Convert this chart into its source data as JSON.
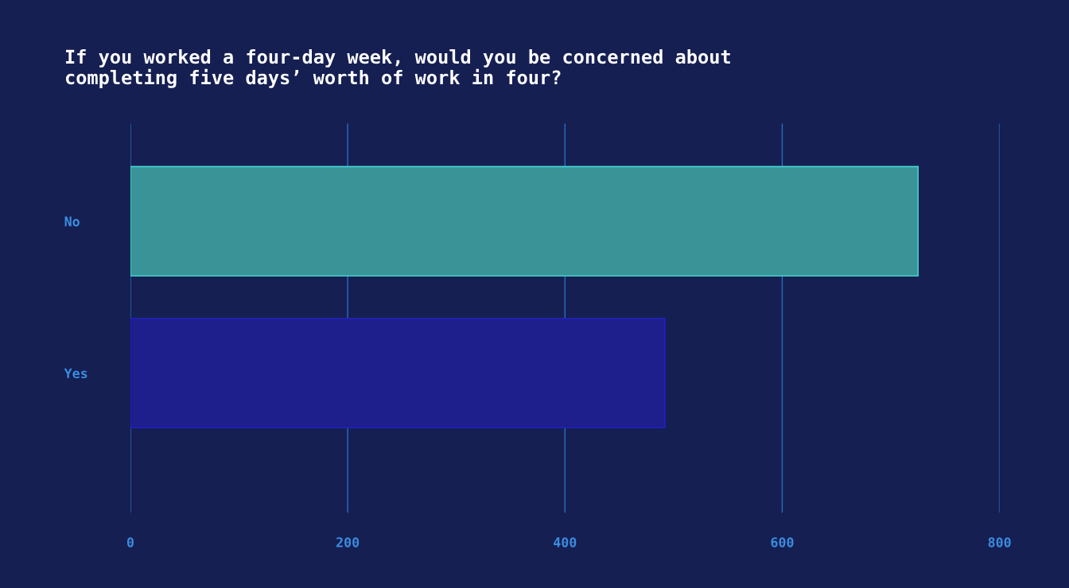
{
  "chart_data": {
    "type": "bar",
    "orientation": "horizontal",
    "title": "If you worked a four-day week, would you be concerned about\ncompleting five days’ worth of work in four?",
    "categories": [
      "No",
      "Yes"
    ],
    "values": [
      725,
      492
    ],
    "colors": [
      "#3a9396",
      "#1e1e8c"
    ],
    "xlim": [
      0,
      800
    ],
    "xticks": [
      0,
      200,
      400,
      600,
      800
    ],
    "grid": "x"
  }
}
